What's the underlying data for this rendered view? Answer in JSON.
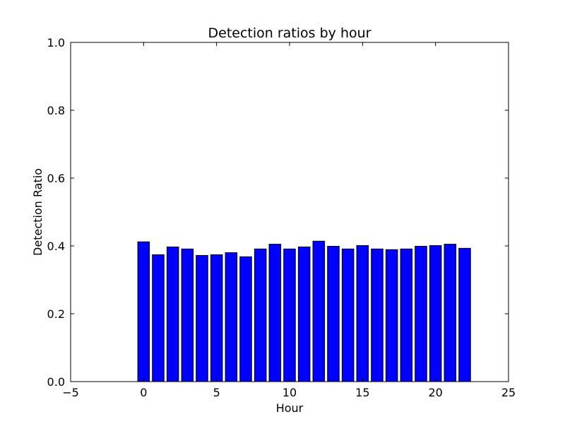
{
  "chart_data": {
    "type": "bar",
    "title": "Detection ratios by hour",
    "xlabel": "Hour",
    "ylabel": "Detection Ratio",
    "xlim": [
      -5,
      25
    ],
    "ylim": [
      0,
      1.0
    ],
    "x_ticks": [
      "−5",
      "0",
      "5",
      "10",
      "15",
      "20",
      "25"
    ],
    "x_tick_values": [
      -5,
      0,
      5,
      10,
      15,
      20,
      25
    ],
    "y_ticks": [
      "0.0",
      "0.2",
      "0.4",
      "0.6",
      "0.8",
      "1.0"
    ],
    "y_tick_values": [
      0,
      0.2,
      0.4,
      0.6,
      0.8,
      1.0
    ],
    "grid": false,
    "bar_color": "#0000ff",
    "bar_edge_color": "#000000",
    "categories": [
      0,
      1,
      2,
      3,
      4,
      5,
      6,
      7,
      8,
      9,
      10,
      11,
      12,
      13,
      14,
      15,
      16,
      17,
      18,
      19,
      20,
      21,
      22
    ],
    "values": [
      0.412,
      0.374,
      0.397,
      0.391,
      0.372,
      0.374,
      0.38,
      0.368,
      0.391,
      0.405,
      0.391,
      0.397,
      0.414,
      0.399,
      0.391,
      0.401,
      0.391,
      0.389,
      0.391,
      0.399,
      0.401,
      0.405,
      0.393
    ]
  }
}
